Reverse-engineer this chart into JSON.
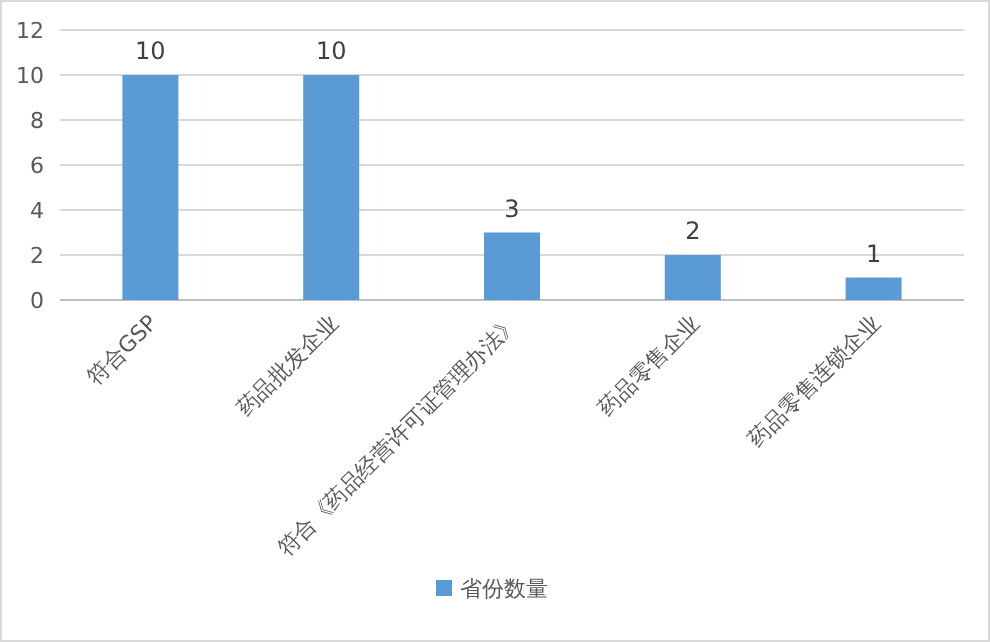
{
  "chart_data": {
    "type": "bar",
    "categories": [
      "符合GSP",
      "药品批发企业",
      "符合《药品经营许可证管理办法》",
      "药品零售企业",
      "药品零售连锁企业"
    ],
    "series": [
      {
        "name": "省份数量",
        "color": "#5b9bd5",
        "values": [
          10,
          10,
          3,
          2,
          1
        ]
      }
    ],
    "ylim": [
      0,
      12
    ],
    "yticks": [
      0,
      2,
      4,
      6,
      8,
      10,
      12
    ],
    "grid": "y",
    "legend": "bottom",
    "data_labels": true
  }
}
